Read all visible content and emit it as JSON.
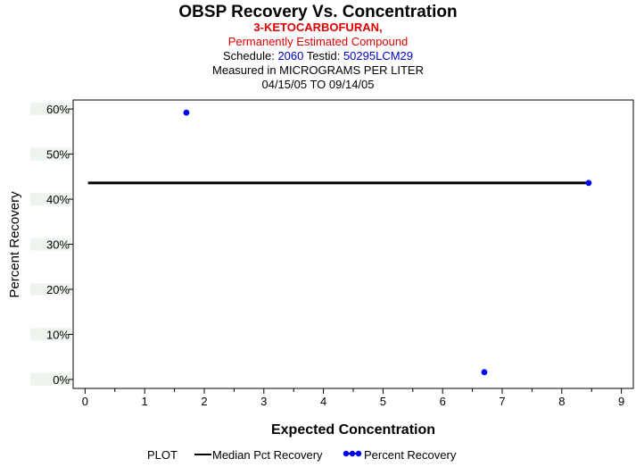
{
  "header": {
    "title": "OBSP Recovery Vs. Concentration",
    "compound": "3-KETOCARBOFURAN,",
    "status": "Permanently Estimated Compound",
    "schedule_label": "Schedule:",
    "schedule_value": "2060",
    "testid_label": "Testid:",
    "testid_value": "50295LCM29",
    "measured_in": "Measured in  MICROGRAMS PER LITER",
    "date_range": "04/15/05 TO 09/14/05"
  },
  "legend": {
    "plot_label": "PLOT",
    "median_label": "Median Pct Recovery",
    "points_label": "Percent Recovery"
  },
  "colors": {
    "points": "#0000ff",
    "median": "#000000",
    "title_red": "#e00000",
    "ids_blue": "#0000cc"
  },
  "chart_data": {
    "type": "scatter",
    "title": "OBSP Recovery Vs. Concentration",
    "xlabel": "Expected Concentration",
    "ylabel": "Percent Recovery",
    "xlim": [
      -0.2,
      9.2
    ],
    "ylim": [
      -2,
      62
    ],
    "x_ticks": [
      0,
      1,
      2,
      3,
      4,
      5,
      6,
      7,
      8,
      9
    ],
    "y_ticks": [
      0,
      10,
      20,
      30,
      40,
      50,
      60
    ],
    "y_tick_labels": [
      "0%",
      "10%",
      "20%",
      "30%",
      "40%",
      "50%",
      "60%"
    ],
    "series": [
      {
        "name": "Percent Recovery",
        "points": [
          {
            "x": 1.7,
            "y": 59.2
          },
          {
            "x": 6.7,
            "y": 1.6
          },
          {
            "x": 8.45,
            "y": 43.6
          }
        ]
      }
    ],
    "median": {
      "name": "Median Pct Recovery",
      "x_start": 0.05,
      "x_end": 8.45,
      "value": 43.6
    }
  }
}
